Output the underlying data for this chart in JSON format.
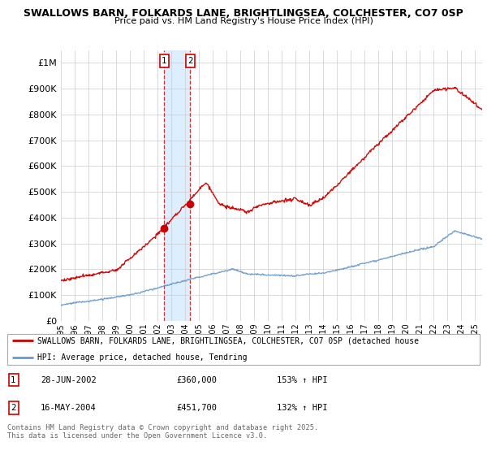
{
  "title1": "SWALLOWS BARN, FOLKARDS LANE, BRIGHTLINGSEA, COLCHESTER, CO7 0SP",
  "title2": "Price paid vs. HM Land Registry's House Price Index (HPI)",
  "ylim": [
    0,
    1050000
  ],
  "yticks": [
    0,
    100000,
    200000,
    300000,
    400000,
    500000,
    600000,
    700000,
    800000,
    900000,
    1000000
  ],
  "ytick_labels": [
    "£0",
    "£100K",
    "£200K",
    "£300K",
    "£400K",
    "£500K",
    "£600K",
    "£700K",
    "£800K",
    "£900K",
    "£1M"
  ],
  "sale1_date": 2002.49,
  "sale1_price": 360000,
  "sale2_date": 2004.37,
  "sale2_price": 451700,
  "legend_red": "SWALLOWS BARN, FOLKARDS LANE, BRIGHTLINGSEA, COLCHESTER, CO7 0SP (detached house",
  "legend_blue": "HPI: Average price, detached house, Tendring",
  "footer": "Contains HM Land Registry data © Crown copyright and database right 2025.\nThis data is licensed under the Open Government Licence v3.0.",
  "red_color": "#cc0000",
  "blue_color": "#6699cc",
  "shade_color": "#ddeeff",
  "background_color": "#ffffff",
  "grid_color": "#cccccc"
}
